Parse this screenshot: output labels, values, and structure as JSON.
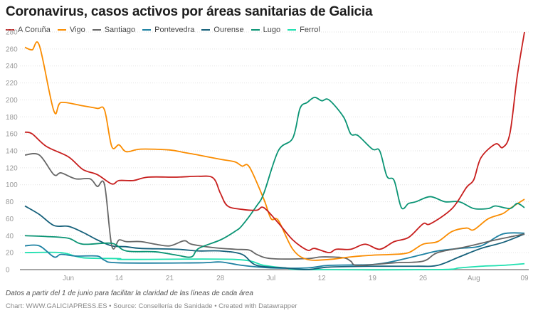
{
  "chart_data": {
    "type": "line",
    "title": "Coronavirus, casos activos por áreas sanitarias de Galicia",
    "xlabel": "",
    "ylabel": "",
    "ylim": [
      0,
      280
    ],
    "yticks": [
      "0",
      "20",
      "40",
      "60",
      "80",
      "100",
      "120",
      "140",
      "160",
      "180",
      "200",
      "220",
      "240",
      "260",
      "280"
    ],
    "xticks": [
      {
        "date": "Jun 7",
        "label": "Jun"
      },
      {
        "date": "Jun 14",
        "label": "14"
      },
      {
        "date": "Jun 21",
        "label": "21"
      },
      {
        "date": "Jun 28",
        "label": "28"
      },
      {
        "date": "Jul 5",
        "label": "Jul"
      },
      {
        "date": "Jul 12",
        "label": "12"
      },
      {
        "date": "Jul 19",
        "label": "19"
      },
      {
        "date": "Jul 26",
        "label": "26"
      },
      {
        "date": "Aug 2",
        "label": "Aug"
      },
      {
        "date": "Aug 9",
        "label": "09"
      }
    ],
    "xrange": [
      "Jun 1",
      "Aug 9"
    ],
    "grid": true,
    "legend": "top-left",
    "series": [
      {
        "name": "A Coruña",
        "color": "#c71e1d",
        "points": [
          [
            "Jun 1",
            162
          ],
          [
            "Jun 2",
            160
          ],
          [
            "Jun 4",
            145
          ],
          [
            "Jun 7",
            133
          ],
          [
            "Jun 9",
            118
          ],
          [
            "Jun 11",
            112
          ],
          [
            "Jun 13",
            101
          ],
          [
            "Jun 14",
            105
          ],
          [
            "Jun 16",
            105
          ],
          [
            "Jun 18",
            109
          ],
          [
            "Jun 22",
            109
          ],
          [
            "Jun 25",
            110
          ],
          [
            "Jun 27",
            108
          ],
          [
            "Jun 28",
            90
          ],
          [
            "Jun 29",
            75
          ],
          [
            "Jul 1",
            71
          ],
          [
            "Jul 3",
            70
          ],
          [
            "Jul 4",
            73
          ],
          [
            "Jul 6",
            55
          ],
          [
            "Jul 8",
            35
          ],
          [
            "Jul 10",
            23
          ],
          [
            "Jul 11",
            25
          ],
          [
            "Jul 13",
            20
          ],
          [
            "Jul 14",
            24
          ],
          [
            "Jul 16",
            24
          ],
          [
            "Jul 18",
            30
          ],
          [
            "Jul 20",
            24
          ],
          [
            "Jul 22",
            33
          ],
          [
            "Jul 24",
            38
          ],
          [
            "Jul 26",
            54
          ],
          [
            "Jul 27",
            54
          ],
          [
            "Jul 30",
            72
          ],
          [
            "Aug 1",
            97
          ],
          [
            "Aug 2",
            106
          ],
          [
            "Aug 3",
            132
          ],
          [
            "Aug 5",
            148
          ],
          [
            "Aug 6",
            144
          ],
          [
            "Aug 7",
            161
          ],
          [
            "Aug 8",
            228
          ],
          [
            "Aug 9",
            280
          ]
        ]
      },
      {
        "name": "Vigo",
        "color": "#fa8c00",
        "points": [
          [
            "Jun 1",
            262
          ],
          [
            "Jun 2",
            259
          ],
          [
            "Jun 3",
            264
          ],
          [
            "Jun 5",
            187
          ],
          [
            "Jun 6",
            197
          ],
          [
            "Jun 9",
            193
          ],
          [
            "Jun 11",
            190
          ],
          [
            "Jun 12",
            188
          ],
          [
            "Jun 13",
            145
          ],
          [
            "Jun 14",
            147
          ],
          [
            "Jun 15",
            139
          ],
          [
            "Jun 17",
            142
          ],
          [
            "Jun 21",
            141
          ],
          [
            "Jun 23",
            138
          ],
          [
            "Jun 25",
            135
          ],
          [
            "Jun 28",
            130
          ],
          [
            "Jun 30",
            127
          ],
          [
            "Jul 1",
            122
          ],
          [
            "Jul 2",
            121
          ],
          [
            "Jul 4",
            83
          ],
          [
            "Jul 5",
            60
          ],
          [
            "Jul 6",
            58
          ],
          [
            "Jul 8",
            24
          ],
          [
            "Jul 10",
            12
          ],
          [
            "Jul 13",
            12
          ],
          [
            "Jul 16",
            15
          ],
          [
            "Jul 19",
            17
          ],
          [
            "Jul 22",
            18
          ],
          [
            "Jul 24",
            20
          ],
          [
            "Jul 26",
            30
          ],
          [
            "Jul 28",
            33
          ],
          [
            "Jul 30",
            45
          ],
          [
            "Aug 1",
            49
          ],
          [
            "Aug 2",
            47
          ],
          [
            "Aug 4",
            60
          ],
          [
            "Aug 6",
            66
          ],
          [
            "Aug 7",
            72
          ],
          [
            "Aug 9",
            83
          ]
        ]
      },
      {
        "name": "Santiago",
        "color": "#666666",
        "points": [
          [
            "Jun 1",
            135
          ],
          [
            "Jun 3",
            135
          ],
          [
            "Jun 5",
            112
          ],
          [
            "Jun 6",
            114
          ],
          [
            "Jun 8",
            107
          ],
          [
            "Jun 10",
            107
          ],
          [
            "Jun 11",
            98
          ],
          [
            "Jun 12",
            100
          ],
          [
            "Jun 13",
            28
          ],
          [
            "Jun 14",
            35
          ],
          [
            "Jun 15",
            33
          ],
          [
            "Jun 17",
            33
          ],
          [
            "Jun 19",
            30
          ],
          [
            "Jun 21",
            28
          ],
          [
            "Jun 23",
            34
          ],
          [
            "Jun 24",
            30
          ],
          [
            "Jun 27",
            26
          ],
          [
            "Jun 30",
            24
          ],
          [
            "Jul 2",
            23
          ],
          [
            "Jul 3",
            18
          ],
          [
            "Jul 5",
            13
          ],
          [
            "Jul 10",
            13
          ],
          [
            "Jul 12",
            15
          ],
          [
            "Jul 15",
            14
          ],
          [
            "Jul 16",
            10
          ],
          [
            "Jul 17",
            5
          ],
          [
            "Jul 22",
            8
          ],
          [
            "Jul 26",
            10
          ],
          [
            "Jul 28",
            20
          ],
          [
            "Aug 1",
            27
          ],
          [
            "Aug 5",
            35
          ],
          [
            "Aug 9",
            42
          ]
        ]
      },
      {
        "name": "Pontevedra",
        "color": "#1d81a2",
        "points": [
          [
            "Jun 1",
            28
          ],
          [
            "Jun 3",
            28
          ],
          [
            "Jun 5",
            15
          ],
          [
            "Jun 6",
            18
          ],
          [
            "Jun 8",
            16
          ],
          [
            "Jun 11",
            16
          ],
          [
            "Jun 12",
            11
          ],
          [
            "Jun 14",
            8
          ],
          [
            "Jun 25",
            8
          ],
          [
            "Jun 28",
            9
          ],
          [
            "Jul 1",
            5
          ],
          [
            "Jul 5",
            2
          ],
          [
            "Jul 10",
            2
          ],
          [
            "Jul 13",
            5
          ],
          [
            "Jul 19",
            6
          ],
          [
            "Jul 22",
            10
          ],
          [
            "Jul 26",
            18
          ],
          [
            "Jul 28",
            22
          ],
          [
            "Jul 31",
            25
          ],
          [
            "Aug 3",
            28
          ],
          [
            "Aug 6",
            42
          ],
          [
            "Aug 9",
            43
          ]
        ]
      },
      {
        "name": "Ourense",
        "color": "#15607a",
        "points": [
          [
            "Jun 1",
            75
          ],
          [
            "Jun 3",
            65
          ],
          [
            "Jun 5",
            52
          ],
          [
            "Jun 7",
            51
          ],
          [
            "Jun 9",
            44
          ],
          [
            "Jun 11",
            35
          ],
          [
            "Jun 13",
            28
          ],
          [
            "Jun 15",
            27
          ],
          [
            "Jun 17",
            25
          ],
          [
            "Jun 22",
            24
          ],
          [
            "Jun 25",
            22
          ],
          [
            "Jun 28",
            22
          ],
          [
            "Jul 1",
            18
          ],
          [
            "Jul 3",
            5
          ],
          [
            "Jul 7",
            2
          ],
          [
            "Jul 10",
            0
          ],
          [
            "Jul 13",
            3
          ],
          [
            "Jul 19",
            4
          ],
          [
            "Jul 25",
            4
          ],
          [
            "Jul 28",
            5
          ],
          [
            "Jul 31",
            15
          ],
          [
            "Aug 3",
            25
          ],
          [
            "Aug 6",
            32
          ],
          [
            "Aug 9",
            42
          ]
        ]
      },
      {
        "name": "Lugo",
        "color": "#0a9474",
        "points": [
          [
            "Jun 1",
            40
          ],
          [
            "Jun 4",
            39
          ],
          [
            "Jun 7",
            37
          ],
          [
            "Jun 9",
            30
          ],
          [
            "Jun 13",
            31
          ],
          [
            "Jun 15",
            22
          ],
          [
            "Jun 19",
            21
          ],
          [
            "Jun 22",
            17
          ],
          [
            "Jun 24",
            15
          ],
          [
            "Jun 25",
            25
          ],
          [
            "Jun 28",
            35
          ],
          [
            "Jun 30",
            45
          ],
          [
            "Jul 1",
            52
          ],
          [
            "Jul 3",
            75
          ],
          [
            "Jul 4",
            90
          ],
          [
            "Jul 6",
            140
          ],
          [
            "Jul 8",
            155
          ],
          [
            "Jul 9",
            190
          ],
          [
            "Jul 10",
            197
          ],
          [
            "Jul 11",
            203
          ],
          [
            "Jul 12",
            199
          ],
          [
            "Jul 13",
            200
          ],
          [
            "Jul 15",
            180
          ],
          [
            "Jul 16",
            160
          ],
          [
            "Jul 17",
            158
          ],
          [
            "Jul 19",
            142
          ],
          [
            "Jul 20",
            140
          ],
          [
            "Jul 21",
            110
          ],
          [
            "Jul 22",
            105
          ],
          [
            "Jul 23",
            73
          ],
          [
            "Jul 24",
            78
          ],
          [
            "Jul 25",
            80
          ],
          [
            "Jul 27",
            86
          ],
          [
            "Jul 29",
            80
          ],
          [
            "Jul 31",
            80
          ],
          [
            "Aug 2",
            72
          ],
          [
            "Aug 4",
            72
          ],
          [
            "Aug 5",
            75
          ],
          [
            "Aug 7",
            72
          ],
          [
            "Aug 8",
            78
          ],
          [
            "Aug 9",
            73
          ]
        ]
      },
      {
        "name": "Ferrol",
        "color": "#1fe0b0",
        "points": [
          [
            "Jun 1",
            20
          ],
          [
            "Jun 6",
            20
          ],
          [
            "Jun 9",
            14
          ],
          [
            "Jun 14",
            13
          ],
          [
            "Jun 15",
            12
          ],
          [
            "Jun 30",
            12
          ],
          [
            "Jul 4",
            5
          ],
          [
            "Jul 7",
            2
          ],
          [
            "Jul 10",
            0
          ],
          [
            "Jul 28",
            0
          ],
          [
            "Jul 31",
            2
          ],
          [
            "Aug 3",
            4
          ],
          [
            "Aug 6",
            5
          ],
          [
            "Aug 9",
            7
          ]
        ]
      }
    ]
  },
  "footer": {
    "note": "Datos a partir del 1 de junio para facilitar la claridad de las líneas de cada área",
    "source": "Chart: WWW.GALICIAPRESS.ES • Source: Consellería de Sanidade • Created with Datawrapper"
  }
}
